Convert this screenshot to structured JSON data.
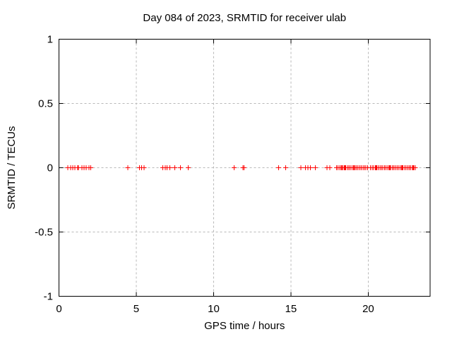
{
  "window": {
    "background": "#ffffff"
  },
  "colors": {
    "background": "#ffffff",
    "foreground": "#000000",
    "grid": "#b8b8b8",
    "marker": "#ff0000"
  },
  "chart_data": {
    "type": "scatter",
    "title": "Day 084 of 2023, SRMTID for receiver ulab",
    "xlabel": "GPS time / hours",
    "ylabel": "SRMTID / TECUs",
    "xlim": [
      0,
      24
    ],
    "ylim": [
      -1,
      1
    ],
    "xticks": [
      0,
      5,
      10,
      15,
      20
    ],
    "yticks": [
      -1,
      -0.5,
      0,
      0.5,
      1
    ],
    "xtick_labels": [
      "0",
      "5",
      "10",
      "15",
      "20"
    ],
    "ytick_labels": [
      "-1",
      "-0.5",
      "0",
      "0.5",
      "1"
    ],
    "grid": true,
    "grid_style": "dashed",
    "legend_position": "none",
    "marker_shape": "plus",
    "marker_color": "#ff0000",
    "series": [
      {
        "name": "SRMTID",
        "y": 0,
        "x": [
          0.58,
          0.76,
          0.9,
          1.03,
          1.2,
          1.26,
          1.49,
          1.63,
          1.76,
          1.95,
          2.05,
          4.45,
          5.2,
          5.35,
          5.5,
          6.72,
          6.87,
          6.99,
          7.18,
          7.48,
          7.86,
          8.36,
          11.33,
          11.9,
          11.97,
          14.21,
          14.67,
          15.65,
          15.95,
          16.1,
          16.25,
          16.57,
          17.33,
          17.51,
          17.95,
          18.05,
          18.15,
          18.25,
          18.3,
          18.35,
          18.45,
          18.5,
          18.55,
          18.65,
          18.75,
          18.85,
          18.95,
          19.05,
          19.1,
          19.15,
          19.25,
          19.35,
          19.45,
          19.55,
          19.65,
          19.75,
          19.85,
          19.95,
          20.15,
          20.25,
          20.35,
          20.45,
          20.5,
          20.55,
          20.65,
          20.75,
          20.85,
          20.95,
          21.05,
          21.15,
          21.25,
          21.35,
          21.4,
          21.45,
          21.55,
          21.65,
          21.75,
          21.85,
          21.95,
          22.05,
          22.15,
          22.2,
          22.25,
          22.35,
          22.45,
          22.55,
          22.65,
          22.75,
          22.85,
          22.9,
          22.95,
          23.05
        ]
      }
    ]
  }
}
